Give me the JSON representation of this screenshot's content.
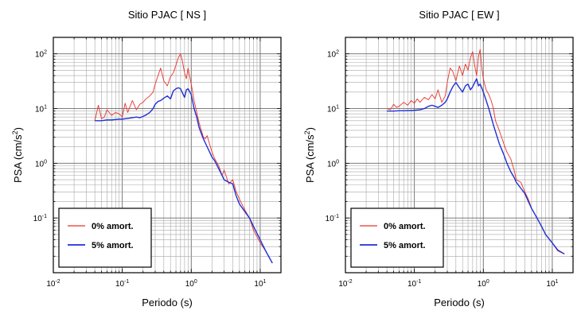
{
  "chart_data": [
    {
      "type": "line",
      "title": "Sitio PJAC [ NS ]",
      "xlabel": "Periodo (s)",
      "ylabel_main": "PSA (cm/s",
      "ylabel_sup": "2",
      "ylabel_tail": ")",
      "xscale": "log",
      "yscale": "log",
      "xlim": [
        0.01,
        20
      ],
      "ylim": [
        0.01,
        200
      ],
      "grid": true,
      "legend_position": "bottom-left",
      "x_ticks": [
        {
          "value": 0.01,
          "base": "10",
          "exp": "-2"
        },
        {
          "value": 0.1,
          "base": "10",
          "exp": "-1"
        },
        {
          "value": 1,
          "base": "10",
          "exp": "0"
        },
        {
          "value": 10,
          "base": "10",
          "exp": "1"
        }
      ],
      "y_ticks": [
        {
          "value": 0.1,
          "base": "10",
          "exp": "-1"
        },
        {
          "value": 1,
          "base": "10",
          "exp": "0"
        },
        {
          "value": 10,
          "base": "10",
          "exp": "1"
        },
        {
          "value": 100,
          "base": "10",
          "exp": "2"
        }
      ],
      "series": [
        {
          "name": "0% amort.",
          "color": "#e8332a",
          "x": [
            0.04,
            0.045,
            0.05,
            0.055,
            0.06,
            0.07,
            0.08,
            0.09,
            0.1,
            0.11,
            0.12,
            0.14,
            0.16,
            0.18,
            0.2,
            0.22,
            0.25,
            0.28,
            0.3,
            0.33,
            0.36,
            0.4,
            0.45,
            0.5,
            0.55,
            0.6,
            0.65,
            0.7,
            0.75,
            0.8,
            0.85,
            0.9,
            0.95,
            1.0,
            1.1,
            1.2,
            1.3,
            1.4,
            1.5,
            1.6,
            1.7,
            1.8,
            2.0,
            2.2,
            2.5,
            2.8,
            3.0,
            3.5,
            4.0,
            4.5,
            5.0,
            6.0,
            7.0,
            8.0,
            10.0,
            12.0,
            15.0
          ],
          "y": [
            6.0,
            11.5,
            6.5,
            7.0,
            9.5,
            7.5,
            8.5,
            8.0,
            7.0,
            12.5,
            8.5,
            14.0,
            9.5,
            12.0,
            13.0,
            15.0,
            17.0,
            20.0,
            28.0,
            40.0,
            55.0,
            32.0,
            26.0,
            38.0,
            45.0,
            62.0,
            85.0,
            100.0,
            70.0,
            45.0,
            35.0,
            55.0,
            38.0,
            28.0,
            14.0,
            8.5,
            5.5,
            4.0,
            3.0,
            2.8,
            3.2,
            2.5,
            1.6,
            1.2,
            0.9,
            0.6,
            0.75,
            0.42,
            0.5,
            0.3,
            0.22,
            0.14,
            0.1,
            0.06,
            0.035,
            0.025,
            0.015
          ]
        },
        {
          "name": "5% amort.",
          "color": "#1f2fd6",
          "x": [
            0.04,
            0.05,
            0.06,
            0.07,
            0.08,
            0.09,
            0.1,
            0.12,
            0.14,
            0.16,
            0.18,
            0.2,
            0.22,
            0.25,
            0.28,
            0.3,
            0.33,
            0.36,
            0.4,
            0.45,
            0.5,
            0.55,
            0.6,
            0.65,
            0.7,
            0.75,
            0.8,
            0.85,
            0.9,
            1.0,
            1.1,
            1.2,
            1.3,
            1.4,
            1.5,
            1.7,
            2.0,
            2.2,
            2.5,
            2.8,
            3.0,
            3.5,
            4.0,
            4.5,
            5.0,
            6.0,
            7.0,
            8.0,
            10.0,
            12.0,
            15.0
          ],
          "y": [
            6.0,
            6.0,
            6.2,
            6.2,
            6.3,
            6.4,
            6.4,
            6.6,
            6.8,
            7.0,
            6.8,
            7.2,
            7.6,
            8.5,
            10.0,
            12.0,
            13.5,
            14.0,
            15.5,
            17.0,
            15.0,
            21.0,
            23.0,
            24.0,
            23.0,
            19.0,
            16.0,
            22.0,
            23.0,
            18.0,
            10.0,
            7.0,
            4.5,
            3.5,
            2.8,
            2.0,
            1.3,
            1.1,
            0.8,
            0.6,
            0.5,
            0.45,
            0.42,
            0.25,
            0.18,
            0.13,
            0.1,
            0.07,
            0.04,
            0.025,
            0.015
          ]
        }
      ]
    },
    {
      "type": "line",
      "title": "Sitio PJAC [ EW ]",
      "xlabel": "Periodo (s)",
      "ylabel_main": "PSA (cm/s",
      "ylabel_sup": "2",
      "ylabel_tail": ")",
      "xscale": "log",
      "yscale": "log",
      "xlim": [
        0.01,
        20
      ],
      "ylim": [
        0.01,
        200
      ],
      "grid": true,
      "legend_position": "bottom-left",
      "x_ticks": [
        {
          "value": 0.01,
          "base": "10",
          "exp": "-2"
        },
        {
          "value": 0.1,
          "base": "10",
          "exp": "-1"
        },
        {
          "value": 1,
          "base": "10",
          "exp": "0"
        },
        {
          "value": 10,
          "base": "10",
          "exp": "1"
        }
      ],
      "y_ticks": [
        {
          "value": 0.1,
          "base": "10",
          "exp": "-1"
        },
        {
          "value": 1,
          "base": "10",
          "exp": "0"
        },
        {
          "value": 10,
          "base": "10",
          "exp": "1"
        },
        {
          "value": 100,
          "base": "10",
          "exp": "2"
        }
      ],
      "series": [
        {
          "name": "0% amort.",
          "color": "#e8332a",
          "x": [
            0.04,
            0.045,
            0.05,
            0.055,
            0.06,
            0.07,
            0.08,
            0.09,
            0.1,
            0.11,
            0.12,
            0.14,
            0.16,
            0.18,
            0.2,
            0.22,
            0.25,
            0.28,
            0.3,
            0.33,
            0.36,
            0.4,
            0.45,
            0.5,
            0.55,
            0.6,
            0.65,
            0.7,
            0.75,
            0.8,
            0.85,
            0.9,
            0.95,
            1.0,
            1.1,
            1.2,
            1.3,
            1.4,
            1.5,
            1.7,
            2.0,
            2.2,
            2.5,
            2.8,
            3.0,
            3.5,
            4.0,
            4.5,
            5.0,
            6.0,
            7.0,
            8.0,
            10.0,
            12.0,
            15.0
          ],
          "y": [
            10.0,
            9.5,
            12.0,
            10.5,
            11.0,
            13.0,
            11.5,
            14.0,
            12.5,
            15.0,
            13.0,
            16.0,
            14.5,
            18.0,
            15.0,
            22.0,
            13.0,
            17.0,
            30.0,
            55.0,
            48.0,
            32.0,
            60.0,
            40.0,
            65.0,
            50.0,
            85.0,
            110.0,
            60.0,
            40.0,
            90.0,
            120.0,
            55.0,
            35.0,
            22.0,
            18.0,
            14.0,
            10.0,
            6.0,
            4.0,
            2.2,
            1.6,
            1.2,
            0.75,
            0.5,
            0.45,
            0.3,
            0.22,
            0.15,
            0.1,
            0.07,
            0.05,
            0.035,
            0.025,
            0.022
          ]
        },
        {
          "name": "5% amort.",
          "color": "#1f2fd6",
          "x": [
            0.04,
            0.05,
            0.06,
            0.07,
            0.08,
            0.09,
            0.1,
            0.12,
            0.14,
            0.16,
            0.18,
            0.2,
            0.22,
            0.25,
            0.28,
            0.3,
            0.33,
            0.36,
            0.4,
            0.45,
            0.5,
            0.55,
            0.6,
            0.65,
            0.7,
            0.75,
            0.8,
            0.85,
            0.9,
            1.0,
            1.1,
            1.2,
            1.3,
            1.4,
            1.5,
            1.7,
            2.0,
            2.2,
            2.5,
            2.8,
            3.0,
            3.5,
            4.0,
            4.5,
            5.0,
            6.0,
            7.0,
            8.0,
            10.0,
            12.0,
            15.0
          ],
          "y": [
            9.0,
            9.0,
            9.1,
            9.1,
            9.2,
            9.2,
            9.3,
            9.5,
            10.0,
            11.0,
            11.5,
            11.0,
            10.5,
            11.5,
            13.0,
            15.0,
            20.0,
            25.0,
            30.0,
            24.0,
            20.0,
            26.0,
            28.0,
            22.0,
            25.0,
            30.0,
            35.0,
            26.0,
            28.0,
            20.0,
            14.0,
            10.0,
            7.0,
            5.0,
            3.8,
            2.3,
            1.4,
            1.0,
            0.7,
            0.55,
            0.45,
            0.35,
            0.28,
            0.2,
            0.15,
            0.1,
            0.07,
            0.05,
            0.035,
            0.026,
            0.022
          ]
        }
      ]
    }
  ]
}
